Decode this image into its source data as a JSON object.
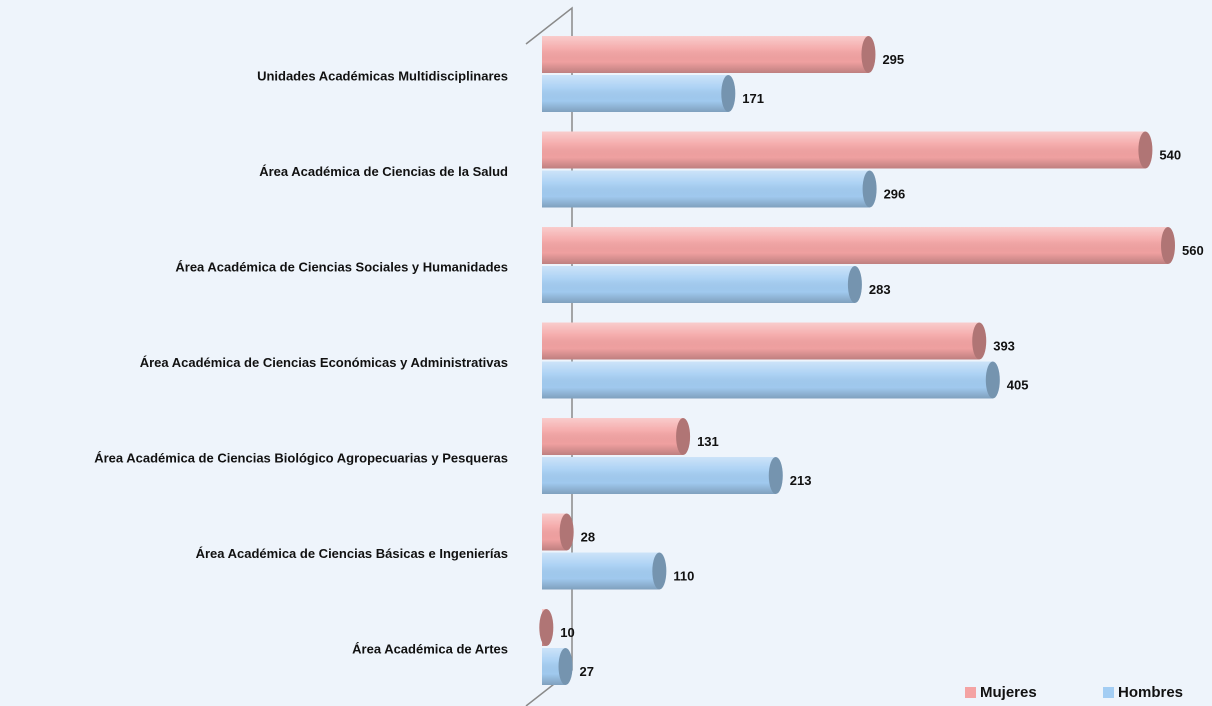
{
  "chart_data": {
    "type": "bar",
    "orientation": "horizontal",
    "categories": [
      "Unidades Académicas Multidisciplinares",
      "Área Académica de Ciencias de la Salud",
      "Área Académica de Ciencias Sociales y Humanidades",
      "Área Académica de Ciencias Económicas y Administrativas",
      "Área Académica de Ciencias Biológico Agropecuarias y Pesqueras",
      "Área Académica de Ciencias Básicas e Ingenierías",
      "Área Académica de Artes"
    ],
    "series": [
      {
        "name": "Mujeres",
        "color": "#f4a3a3",
        "values": [
          295,
          540,
          560,
          393,
          131,
          28,
          10
        ]
      },
      {
        "name": "Hombres",
        "color": "#a3cdf3",
        "values": [
          171,
          296,
          283,
          405,
          213,
          110,
          27
        ]
      }
    ],
    "legend": "bottom-right"
  }
}
